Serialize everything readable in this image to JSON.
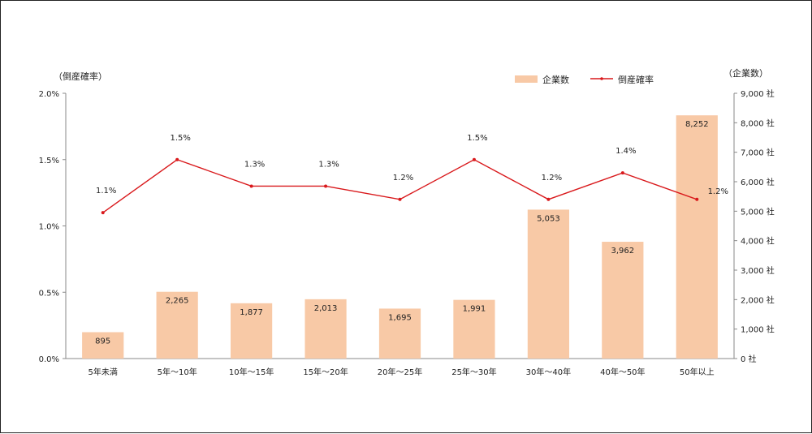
{
  "chart_data": {
    "type": "bar+line",
    "categories": [
      "5年未満",
      "5年～10年",
      "10年～15年",
      "15年～20年",
      "20年～25年",
      "25年～30年",
      "30年～40年",
      "40年～50年",
      "50年以上"
    ],
    "series": [
      {
        "name": "企業数",
        "type": "bar",
        "axis": "right",
        "values": [
          895,
          2265,
          1877,
          2013,
          1695,
          1991,
          5053,
          3962,
          8252
        ],
        "labels": [
          "895",
          "2,265",
          "1,877",
          "2,013",
          "1,695",
          "1,991",
          "5,053",
          "3,962",
          "8,252"
        ],
        "color": "#f8c9a6"
      },
      {
        "name": "倒産確率",
        "type": "line",
        "axis": "left",
        "values": [
          1.1,
          1.5,
          1.3,
          1.3,
          1.2,
          1.5,
          1.2,
          1.4,
          1.2
        ],
        "labels": [
          "1.1%",
          "1.5%",
          "1.3%",
          "1.3%",
          "1.2%",
          "1.5%",
          "1.2%",
          "1.4%",
          "1.2%"
        ],
        "color": "#d9191c"
      }
    ],
    "left_axis": {
      "label": "（倒産確率）",
      "range": [
        0,
        2.0
      ],
      "ticks": [
        0,
        0.5,
        1.0,
        1.5,
        2.0
      ],
      "tick_labels": [
        "0.0%",
        "0.5%",
        "1.0%",
        "1.5%",
        "2.0%"
      ]
    },
    "right_axis": {
      "label": "（企業数）",
      "range": [
        0,
        9000
      ],
      "ticks": [
        0,
        1000,
        2000,
        3000,
        4000,
        5000,
        6000,
        7000,
        8000,
        9000
      ],
      "tick_labels": [
        "0 社",
        "1,000 社",
        "2,000 社",
        "3,000 社",
        "4,000 社",
        "5,000 社",
        "6,000 社",
        "7,000 社",
        "8,000 社",
        "9,000 社"
      ]
    },
    "legend": {
      "position": "top-right",
      "items": [
        "企業数",
        "倒産確率"
      ]
    },
    "grid": false
  }
}
